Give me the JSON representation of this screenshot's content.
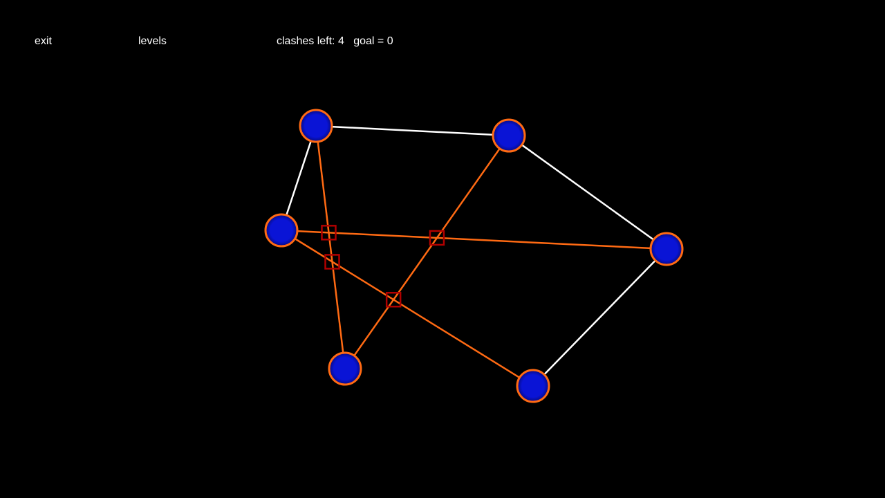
{
  "menu": {
    "exit_label": "exit",
    "levels_label": "levels"
  },
  "status": {
    "clashes_label": "clashes left:",
    "clashes_left": "4",
    "goal_label": "goal =",
    "goal_value": "0"
  },
  "colors": {
    "background": "#000000",
    "edge_clear": "#ffffff",
    "edge_clashing": "#ff6a13",
    "node_fill": "#0a14d6",
    "node_outline": "#ff6a13",
    "clash_marker": "#b00000"
  },
  "puzzle": {
    "nodes": [
      {
        "id": "n1"
      },
      {
        "id": "n2"
      },
      {
        "id": "n3"
      },
      {
        "id": "n4"
      },
      {
        "id": "n5"
      },
      {
        "id": "n6"
      }
    ],
    "edges": [
      {
        "from": "n1",
        "to": "n2",
        "clashing": false
      },
      {
        "from": "n1",
        "to": "n3",
        "clashing": false
      },
      {
        "from": "n2",
        "to": "n4",
        "clashing": false
      },
      {
        "from": "n4",
        "to": "n6",
        "clashing": false
      },
      {
        "from": "n1",
        "to": "n5",
        "clashing": true
      },
      {
        "from": "n3",
        "to": "n4",
        "clashing": true
      },
      {
        "from": "n3",
        "to": "n6",
        "clashing": true
      },
      {
        "from": "n2",
        "to": "n5",
        "clashing": true
      }
    ]
  }
}
